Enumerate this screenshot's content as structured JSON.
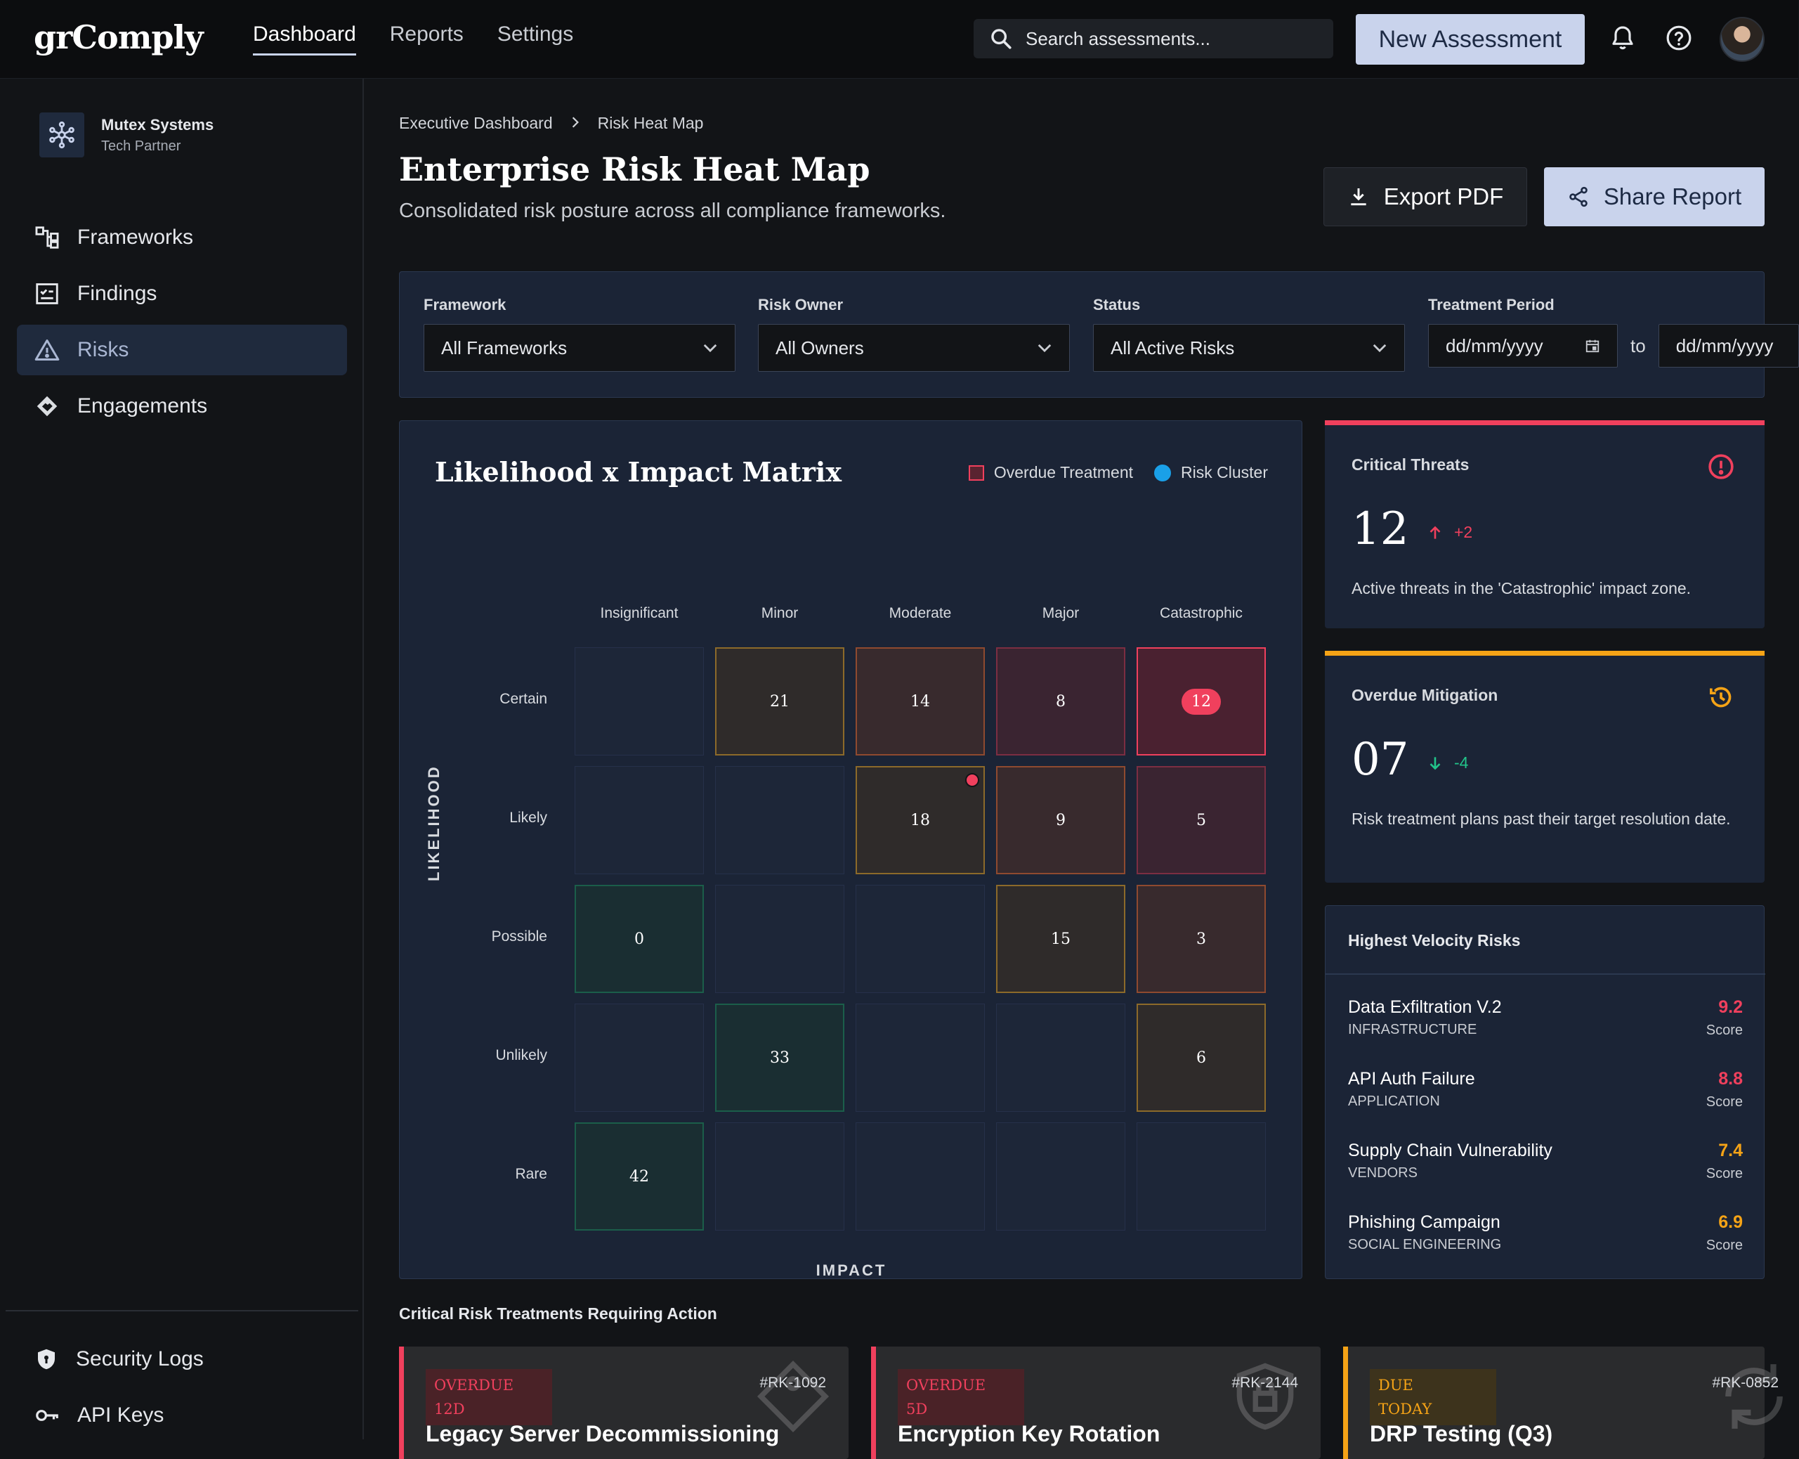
{
  "app": {
    "logo": "grComply",
    "nav": [
      {
        "label": "Dashboard",
        "active": true
      },
      {
        "label": "Reports",
        "active": false
      },
      {
        "label": "Settings",
        "active": false
      }
    ],
    "search_placeholder": "Search assessments...",
    "new_assessment_label": "New Assessment",
    "icons": {
      "search": "search-icon",
      "bell": "bell-icon",
      "help": "help-icon"
    }
  },
  "sidebar": {
    "org": {
      "name": "Mutex Systems",
      "role": "Tech Partner"
    },
    "items": [
      {
        "label": "Frameworks",
        "icon": "frameworks-icon",
        "active": false
      },
      {
        "label": "Findings",
        "icon": "findings-icon",
        "active": false
      },
      {
        "label": "Risks",
        "icon": "warning-icon",
        "active": true
      },
      {
        "label": "Engagements",
        "icon": "handshake-icon",
        "active": false
      }
    ],
    "bottom_items": [
      {
        "label": "Security Logs",
        "icon": "shield-icon"
      },
      {
        "label": "API Keys",
        "icon": "key-icon"
      }
    ]
  },
  "page": {
    "breadcrumb": [
      "Executive Dashboard",
      "Risk Heat Map"
    ],
    "title": "Enterprise Risk Heat Map",
    "subtitle": "Consolidated risk posture across all compliance frameworks.",
    "export_label": "Export PDF",
    "share_label": "Share Report"
  },
  "filters": {
    "framework": {
      "label": "Framework",
      "value": "All Frameworks"
    },
    "owner": {
      "label": "Risk Owner",
      "value": "All Owners"
    },
    "status": {
      "label": "Status",
      "value": "All Active Risks"
    },
    "period": {
      "label": "Treatment Period",
      "from": "dd/mm/yyyy",
      "to_label": "to",
      "to": "dd/mm/yyyy"
    }
  },
  "matrix": {
    "title": "Likelihood x Impact Matrix",
    "legend": {
      "overdue": "Overdue Treatment",
      "cluster": "Risk Cluster"
    },
    "impact_levels": [
      "Insignificant",
      "Minor",
      "Moderate",
      "Major",
      "Catastrophic"
    ],
    "likelihood_levels": [
      "Certain",
      "Likely",
      "Possible",
      "Unlikely",
      "Rare"
    ],
    "y_axis": "LIKELIHOOD",
    "x_axis": "IMPACT",
    "cells": [
      [
        "",
        "21",
        "14",
        "8",
        "12"
      ],
      [
        "",
        "",
        "18",
        "9",
        "5"
      ],
      [
        "0",
        "",
        "",
        "15",
        "3"
      ],
      [
        "",
        "33",
        "",
        "",
        "6"
      ],
      [
        "42",
        "",
        "",
        "",
        ""
      ]
    ],
    "colors": {
      "critical": "#f0405d",
      "cluster": "#1aa0e8"
    }
  },
  "cards": {
    "critical": {
      "title": "Critical Threats",
      "value": "12",
      "delta": "+2",
      "description": "Active threats in the 'Catastrophic' impact zone.",
      "accent": "#f0405d"
    },
    "overdue": {
      "title": "Overdue Mitigation",
      "value": "07",
      "delta": "-4",
      "description": "Risk treatment plans past their target resolution date.",
      "accent": "#f5a316"
    }
  },
  "velocity": {
    "title": "Highest Velocity Risks",
    "items": [
      {
        "name": "Data Exfiltration V.2",
        "category": "INFRASTRUCTURE",
        "score": "9.2",
        "score_label": "Score"
      },
      {
        "name": "API Auth Failure",
        "category": "APPLICATION",
        "score": "8.8",
        "score_label": "Score"
      },
      {
        "name": "Supply Chain Vulnerability",
        "category": "VENDORS",
        "score": "7.4",
        "score_label": "Score"
      },
      {
        "name": "Phishing Campaign",
        "category": "SOCIAL ENGINEERING",
        "score": "6.9",
        "score_label": "Score"
      }
    ]
  },
  "treatments": {
    "title": "Critical Risk Treatments Requiring Action",
    "items": [
      {
        "badge_top": "OVERDUE",
        "badge_bottom": "12D",
        "id": "#RK-1092",
        "name": "Legacy Server Decommissioning",
        "color": "#f0405d"
      },
      {
        "badge_top": "OVERDUE",
        "badge_bottom": "5D",
        "id": "#RK-2144",
        "name": "Encryption Key Rotation",
        "color": "#f0405d"
      },
      {
        "badge_top": "DUE",
        "badge_bottom": "TODAY",
        "id": "#RK-0852",
        "name": "DRP Testing (Q3)",
        "color": "#f5a316"
      }
    ]
  }
}
